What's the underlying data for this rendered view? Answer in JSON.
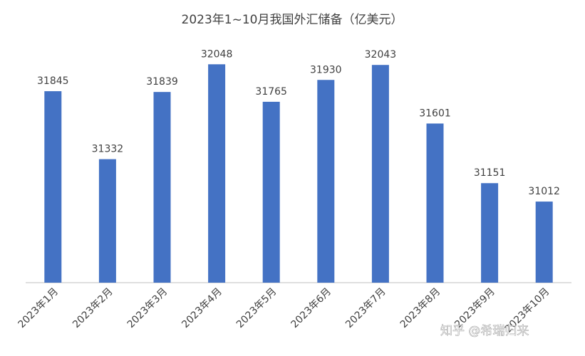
{
  "chart_data": {
    "type": "bar",
    "title": "2023年1~10月我国外汇储备（亿美元）",
    "categories": [
      "2023年1月",
      "2023年2月",
      "2023年3月",
      "2023年4月",
      "2023年5月",
      "2023年6月",
      "2023年7月",
      "2023年8月",
      "2023年9月",
      "2023年10月"
    ],
    "values": [
      31845,
      31332,
      31839,
      32048,
      31765,
      31930,
      32043,
      31601,
      31151,
      31012
    ],
    "color": "#4472c4",
    "ylim": [
      30400,
      32200
    ],
    "data_labels": true,
    "watermark": "知乎 @希瑞归来"
  }
}
